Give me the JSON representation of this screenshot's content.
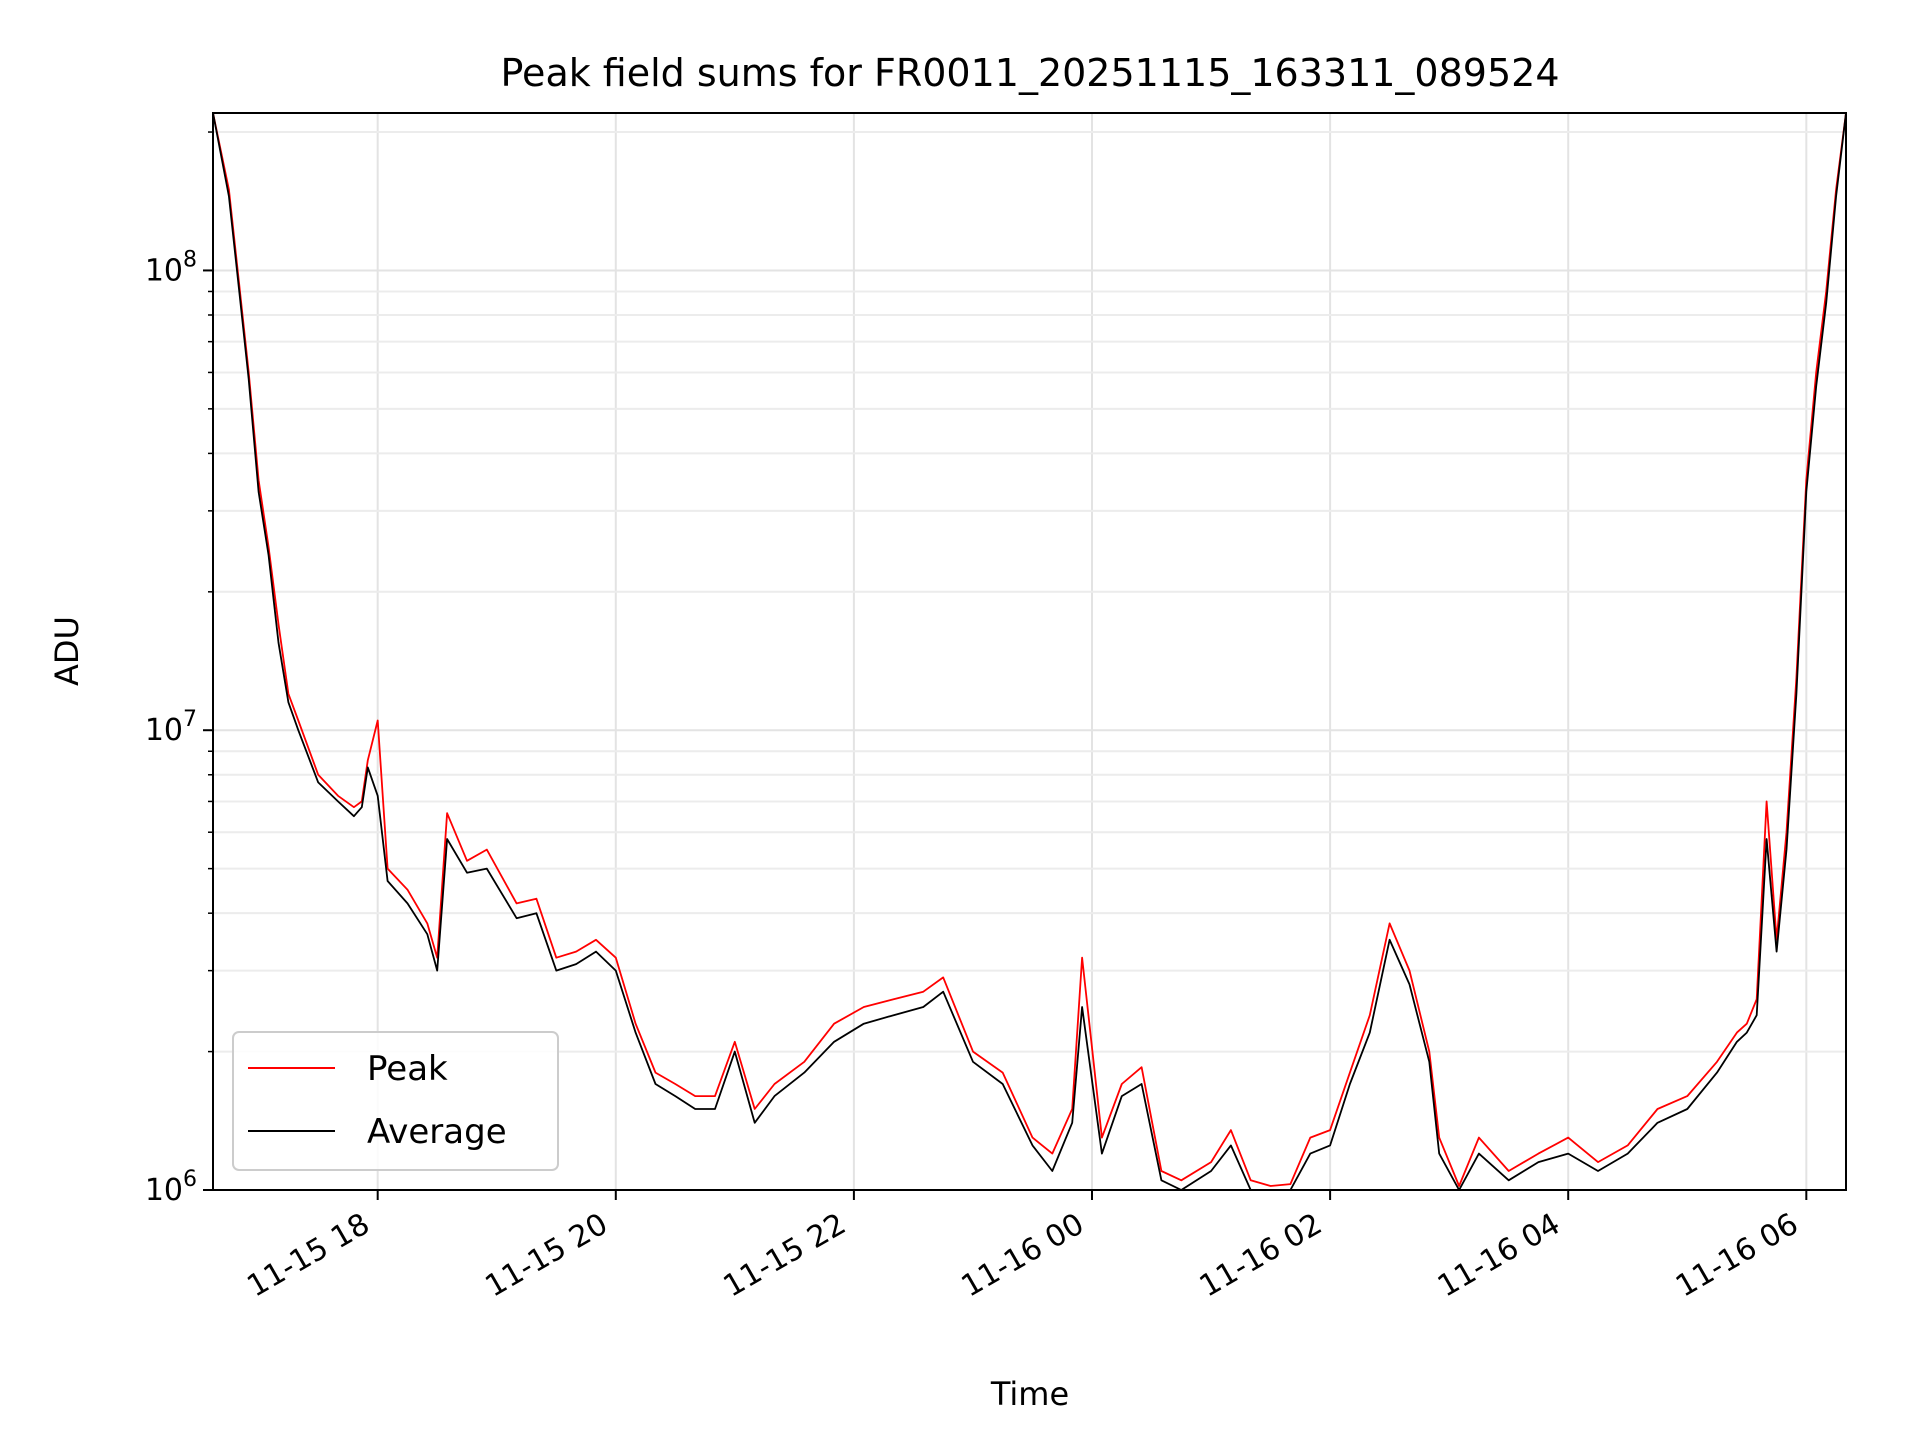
{
  "chart_data": {
    "type": "line",
    "title": "Peak field sums for FR0011_20251115_163311_089524",
    "xlabel": "Time",
    "ylabel": "ADU",
    "x_axis": "datetime",
    "y_scale": "log",
    "xlim": [
      "2025-11-15 16:37",
      "2025-11-16 06:20"
    ],
    "ylim": [
      1000000,
      220000000
    ],
    "x_ticks": [
      {
        "value": "2025-11-15 18:00",
        "label": "11-15 18"
      },
      {
        "value": "2025-11-15 20:00",
        "label": "11-15 20"
      },
      {
        "value": "2025-11-15 22:00",
        "label": "11-15 22"
      },
      {
        "value": "2025-11-16 00:00",
        "label": "11-16 00"
      },
      {
        "value": "2025-11-16 02:00",
        "label": "11-16 02"
      },
      {
        "value": "2025-11-16 04:00",
        "label": "11-16 04"
      },
      {
        "value": "2025-11-16 06:00",
        "label": "11-16 06"
      }
    ],
    "y_ticks": [
      {
        "value": 1000000,
        "base": "10",
        "exp": "6"
      },
      {
        "value": 10000000,
        "base": "10",
        "exp": "7"
      },
      {
        "value": 100000000,
        "base": "10",
        "exp": "8"
      }
    ],
    "grid": true,
    "legend": "lower-left",
    "colors": {
      "peak": "#ff0000",
      "average": "#000000"
    },
    "x": [
      "2025-11-15 16:37",
      "2025-11-15 16:45",
      "2025-11-15 16:50",
      "2025-11-15 16:55",
      "2025-11-15 17:00",
      "2025-11-15 17:05",
      "2025-11-15 17:10",
      "2025-11-15 17:15",
      "2025-11-15 17:20",
      "2025-11-15 17:30",
      "2025-11-15 17:40",
      "2025-11-15 17:48",
      "2025-11-15 17:52",
      "2025-11-15 17:55",
      "2025-11-15 18:00",
      "2025-11-15 18:05",
      "2025-11-15 18:15",
      "2025-11-15 18:25",
      "2025-11-15 18:30",
      "2025-11-15 18:35",
      "2025-11-15 18:45",
      "2025-11-15 18:55",
      "2025-11-15 19:10",
      "2025-11-15 19:20",
      "2025-11-15 19:30",
      "2025-11-15 19:40",
      "2025-11-15 19:50",
      "2025-11-15 20:00",
      "2025-11-15 20:10",
      "2025-11-15 20:20",
      "2025-11-15 20:30",
      "2025-11-15 20:40",
      "2025-11-15 20:50",
      "2025-11-15 21:00",
      "2025-11-15 21:10",
      "2025-11-15 21:20",
      "2025-11-15 21:35",
      "2025-11-15 21:50",
      "2025-11-15 22:05",
      "2025-11-15 22:20",
      "2025-11-15 22:35",
      "2025-11-15 22:45",
      "2025-11-15 23:00",
      "2025-11-15 23:15",
      "2025-11-15 23:30",
      "2025-11-15 23:40",
      "2025-11-15 23:50",
      "2025-11-15 23:55",
      "2025-11-16 00:05",
      "2025-11-16 00:15",
      "2025-11-16 00:25",
      "2025-11-16 00:35",
      "2025-11-16 00:45",
      "2025-11-16 01:00",
      "2025-11-16 01:10",
      "2025-11-16 01:20",
      "2025-11-16 01:30",
      "2025-11-16 01:40",
      "2025-11-16 01:50",
      "2025-11-16 02:00",
      "2025-11-16 02:10",
      "2025-11-16 02:20",
      "2025-11-16 02:30",
      "2025-11-16 02:40",
      "2025-11-16 02:50",
      "2025-11-16 02:55",
      "2025-11-16 03:05",
      "2025-11-16 03:15",
      "2025-11-16 03:30",
      "2025-11-16 03:45",
      "2025-11-16 04:00",
      "2025-11-16 04:15",
      "2025-11-16 04:30",
      "2025-11-16 04:45",
      "2025-11-16 05:00",
      "2025-11-16 05:15",
      "2025-11-16 05:25",
      "2025-11-16 05:30",
      "2025-11-16 05:35",
      "2025-11-16 05:40",
      "2025-11-16 05:45",
      "2025-11-16 05:50",
      "2025-11-16 05:55",
      "2025-11-16 06:00",
      "2025-11-16 06:05",
      "2025-11-16 06:10",
      "2025-11-16 06:15",
      "2025-11-16 06:20"
    ],
    "series": [
      {
        "name": "Peak",
        "values": [
          220000000,
          150000000,
          95000000,
          60000000,
          35000000,
          25000000,
          17000000,
          12000000,
          10500000,
          8000000,
          7200000,
          6800000,
          7000000,
          8600000,
          10500000,
          5000000,
          4500000,
          3800000,
          3200000,
          6600000,
          5200000,
          5500000,
          4200000,
          4300000,
          3200000,
          3300000,
          3500000,
          3200000,
          2300000,
          1800000,
          1700000,
          1600000,
          1600000,
          2100000,
          1500000,
          1700000,
          1900000,
          2300000,
          2500000,
          2600000,
          2700000,
          2900000,
          2000000,
          1800000,
          1300000,
          1200000,
          1500000,
          3200000,
          1300000,
          1700000,
          1850000,
          1100000,
          1050000,
          1150000,
          1350000,
          1050000,
          1020000,
          1030000,
          1300000,
          1350000,
          1800000,
          2400000,
          3800000,
          3000000,
          2000000,
          1300000,
          1020000,
          1300000,
          1100000,
          1200000,
          1300000,
          1150000,
          1250000,
          1500000,
          1600000,
          1900000,
          2200000,
          2300000,
          2600000,
          7000000,
          3500000,
          6000000,
          13000000,
          35000000,
          60000000,
          90000000,
          150000000,
          220000000
        ]
      },
      {
        "name": "Average",
        "values": [
          220000000,
          145000000,
          92000000,
          58000000,
          33000000,
          24000000,
          15500000,
          11500000,
          10000000,
          7700000,
          7000000,
          6500000,
          6800000,
          8300000,
          7200000,
          4700000,
          4200000,
          3600000,
          3000000,
          5800000,
          4900000,
          5000000,
          3900000,
          4000000,
          3000000,
          3100000,
          3300000,
          3000000,
          2200000,
          1700000,
          1600000,
          1500000,
          1500000,
          2000000,
          1400000,
          1600000,
          1800000,
          2100000,
          2300000,
          2400000,
          2500000,
          2700000,
          1900000,
          1700000,
          1250000,
          1100000,
          1400000,
          2500000,
          1200000,
          1600000,
          1700000,
          1050000,
          1000000,
          1100000,
          1250000,
          1000000,
          1000000,
          1000000,
          1200000,
          1250000,
          1700000,
          2200000,
          3500000,
          2800000,
          1900000,
          1200000,
          1000000,
          1200000,
          1050000,
          1150000,
          1200000,
          1100000,
          1200000,
          1400000,
          1500000,
          1800000,
          2100000,
          2200000,
          2400000,
          5800000,
          3300000,
          5500000,
          12000000,
          33000000,
          56000000,
          85000000,
          145000000,
          220000000
        ]
      }
    ]
  }
}
